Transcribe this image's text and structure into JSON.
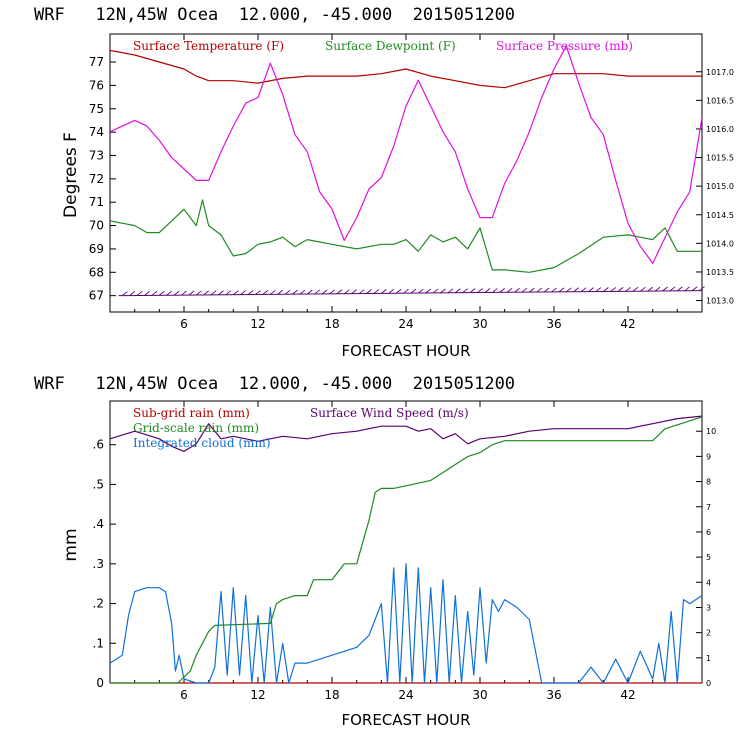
{
  "chart_data": [
    {
      "type": "line",
      "header": "WRF   12N,45W Ocea  12.000, -45.000  2015051200",
      "ylabel": "Degrees F",
      "xlabel": "FORECAST HOUR",
      "xlim": [
        0,
        48
      ],
      "x_ticks": [
        6,
        12,
        18,
        24,
        30,
        36,
        42
      ],
      "ylim": [
        66.3,
        78.2
      ],
      "y_ticks": [
        67,
        68,
        69,
        70,
        71,
        72,
        73,
        74,
        75,
        76,
        77
      ],
      "y2lim": [
        1012.8,
        1017.66
      ],
      "y2_ticks": [
        "1013.0",
        "1013.5",
        "1014.0",
        "1014.5",
        "1015.0",
        "1015.5",
        "1016.0",
        "1016.5",
        "1017.0"
      ],
      "legend": [
        "Surface Temperature (F)",
        "Surface Dewpoint (F)",
        "Surface Pressure (mb)"
      ],
      "series": [
        {
          "name": "Surface Temperature (F)",
          "axis": "left",
          "color": "#b00000",
          "x": [
            0,
            2,
            4,
            6,
            7,
            8,
            10,
            12,
            14,
            16,
            18,
            20,
            22,
            24,
            26,
            28,
            30,
            32,
            34,
            36,
            38,
            40,
            42,
            44,
            46,
            48
          ],
          "y": [
            77.5,
            77.3,
            77.0,
            76.7,
            76.4,
            76.2,
            76.2,
            76.1,
            76.3,
            76.4,
            76.4,
            76.4,
            76.5,
            76.7,
            76.4,
            76.2,
            76.0,
            75.9,
            76.2,
            76.5,
            76.5,
            76.5,
            76.4,
            76.4,
            76.4,
            76.4
          ]
        },
        {
          "name": "Surface Dewpoint (F)",
          "axis": "left",
          "color": "#1f8a1f",
          "x": [
            0,
            2,
            3,
            4,
            5,
            6,
            7,
            7.5,
            8,
            9,
            10,
            11,
            12,
            13,
            14,
            15,
            16,
            18,
            20,
            22,
            23,
            24,
            25,
            26,
            27,
            28,
            29,
            30,
            31,
            32,
            34,
            36,
            38,
            40,
            42,
            43,
            44,
            45,
            46,
            48
          ],
          "y": [
            70.2,
            70.0,
            69.7,
            69.7,
            70.2,
            70.7,
            70.0,
            71.1,
            70.0,
            69.6,
            68.7,
            68.8,
            69.2,
            69.3,
            69.5,
            69.1,
            69.4,
            69.2,
            69.0,
            69.2,
            69.2,
            69.4,
            68.9,
            69.6,
            69.3,
            69.5,
            69.0,
            69.9,
            68.1,
            68.1,
            68.0,
            68.2,
            68.8,
            69.5,
            69.6,
            69.5,
            69.4,
            69.9,
            68.9,
            68.9
          ]
        },
        {
          "name": "Surface Pressure (mb)",
          "axis": "right",
          "color": "#e010e0",
          "x": [
            0,
            1,
            2,
            3,
            4,
            5,
            6,
            7,
            8,
            9,
            10,
            11,
            12,
            13,
            14,
            15,
            16,
            17,
            18,
            19,
            20,
            21,
            22,
            23,
            24,
            25,
            26,
            27,
            28,
            29,
            30,
            31,
            32,
            33,
            34,
            35,
            36,
            37,
            38,
            39,
            40,
            41,
            42,
            43,
            44,
            45,
            46,
            47,
            48
          ],
          "y": [
            1015.95,
            1016.05,
            1016.15,
            1016.05,
            1015.8,
            1015.5,
            1015.3,
            1015.1,
            1015.1,
            1015.6,
            1016.05,
            1016.45,
            1016.55,
            1017.15,
            1016.6,
            1015.9,
            1015.6,
            1014.9,
            1014.6,
            1014.05,
            1014.45,
            1014.95,
            1015.15,
            1015.7,
            1016.4,
            1016.85,
            1016.4,
            1015.95,
            1015.6,
            1014.95,
            1014.45,
            1014.45,
            1015.05,
            1015.45,
            1015.95,
            1016.55,
            1017.05,
            1017.45,
            1016.8,
            1016.2,
            1015.9,
            1015.1,
            1014.35,
            1013.95,
            1013.65,
            1014.1,
            1014.55,
            1014.9,
            1016.2
          ]
        }
      ]
    },
    {
      "type": "line",
      "header": "WRF   12N,45W Ocea  12.000, -45.000  2015051200",
      "ylabel": "mm",
      "xlabel": "FORECAST HOUR",
      "xlim": [
        0,
        48
      ],
      "x_ticks": [
        6,
        12,
        18,
        24,
        30,
        36,
        42
      ],
      "ylim": [
        0,
        0.71
      ],
      "y_ticks": [
        0,
        0.1,
        0.2,
        0.3,
        0.4,
        0.5,
        0.6
      ],
      "y_tick_labels": [
        "0",
        ".1",
        ".2",
        ".3",
        ".4",
        ".5",
        ".6"
      ],
      "y2lim": [
        0,
        11.2
      ],
      "y2_ticks": [
        0,
        1,
        2,
        3,
        4,
        5,
        6,
        7,
        8,
        9,
        10
      ],
      "legend": [
        "Sub-grid rain (mm)",
        "Surface Wind Speed (m/s)",
        "Grid-scale rain (mm)",
        "Integrated cloud (mm)"
      ],
      "series": [
        {
          "name": "Sub-grid rain (mm)",
          "axis": "left",
          "color": "#b00000",
          "x": [
            0,
            48
          ],
          "y": [
            0,
            0
          ]
        },
        {
          "name": "Surface Wind Speed (m/s)",
          "axis": "right",
          "color": "#5a0070",
          "x": [
            0,
            2,
            4,
            5,
            6,
            7,
            8,
            9,
            10,
            12,
            14,
            16,
            18,
            20,
            22,
            24,
            25,
            26,
            27,
            28,
            29,
            30,
            32,
            34,
            36,
            38,
            40,
            42,
            44,
            46,
            48
          ],
          "y": [
            9.7,
            10.0,
            9.7,
            9.4,
            9.2,
            9.5,
            10.3,
            9.7,
            9.8,
            9.6,
            9.8,
            9.7,
            9.9,
            10.0,
            10.2,
            10.2,
            10.0,
            10.1,
            9.7,
            9.9,
            9.5,
            9.7,
            9.8,
            10.0,
            10.1,
            10.1,
            10.1,
            10.1,
            10.3,
            10.5,
            10.6
          ]
        },
        {
          "name": "Grid-scale rain (mm)",
          "axis": "left",
          "color": "#1f8a1f",
          "x": [
            0,
            5.5,
            6.5,
            7,
            7.5,
            8,
            8.5,
            13,
            13.5,
            14,
            15,
            16,
            16.5,
            18,
            19,
            20,
            21,
            21.5,
            22,
            23,
            26,
            27,
            28,
            29,
            30,
            31,
            32,
            44,
            45,
            48
          ],
          "y": [
            0,
            0,
            0.03,
            0.07,
            0.1,
            0.13,
            0.145,
            0.15,
            0.2,
            0.21,
            0.22,
            0.22,
            0.26,
            0.26,
            0.3,
            0.3,
            0.41,
            0.48,
            0.49,
            0.49,
            0.51,
            0.53,
            0.55,
            0.57,
            0.58,
            0.6,
            0.61,
            0.61,
            0.64,
            0.67
          ]
        },
        {
          "name": "Integrated cloud (mm)",
          "axis": "left",
          "color": "#1070d8",
          "x": [
            0,
            1,
            1.5,
            2,
            3,
            4,
            4.5,
            5,
            5.3,
            5.6,
            6,
            7,
            8,
            8.5,
            9,
            9.5,
            10,
            10.5,
            11,
            11.5,
            12,
            12.5,
            13,
            13.5,
            14,
            14.5,
            15,
            16,
            17,
            18,
            20,
            21,
            22,
            22.5,
            23,
            23.5,
            24,
            24.5,
            25,
            25.5,
            26,
            26.5,
            27,
            27.5,
            28,
            28.5,
            29,
            29.5,
            30,
            30.5,
            31,
            31.5,
            32,
            33,
            34,
            35,
            36,
            37,
            38,
            39,
            40,
            41,
            42,
            43,
            44,
            44.5,
            45,
            45.5,
            46,
            46.5,
            47,
            48
          ],
          "y": [
            0.05,
            0.07,
            0.17,
            0.23,
            0.24,
            0.24,
            0.23,
            0.15,
            0.03,
            0.07,
            0.01,
            0.0,
            0.0,
            0.04,
            0.23,
            0.02,
            0.24,
            0.02,
            0.22,
            0.0,
            0.17,
            0.0,
            0.19,
            0.0,
            0.1,
            0.0,
            0.05,
            0.05,
            0.06,
            0.07,
            0.09,
            0.12,
            0.2,
            0.0,
            0.29,
            0.0,
            0.3,
            0.0,
            0.29,
            0.0,
            0.24,
            0.0,
            0.26,
            0.0,
            0.22,
            0.0,
            0.18,
            0.02,
            0.24,
            0.05,
            0.21,
            0.18,
            0.21,
            0.19,
            0.16,
            0.0,
            0.0,
            0.0,
            0.0,
            0.04,
            0.0,
            0.06,
            0.0,
            0.08,
            0.01,
            0.1,
            0.0,
            0.18,
            0.0,
            0.21,
            0.2,
            0.22
          ]
        }
      ]
    }
  ]
}
